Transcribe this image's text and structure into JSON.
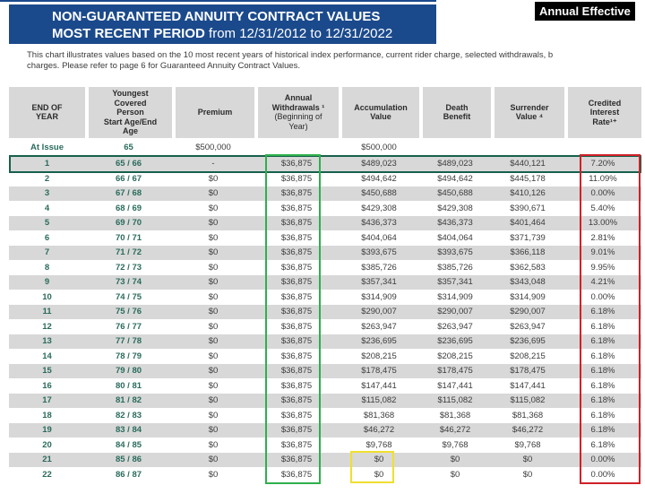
{
  "header": {
    "title_line1": "NON-GUARANTEED ANNUITY CONTRACT VALUES",
    "title_line2_bold": "MOST RECENT PERIOD",
    "title_line2_rest": " from 12/31/2012 to 12/31/2022",
    "corner_label": "Annual Effective"
  },
  "note": {
    "line1": "This chart illustrates values based on the 10 most recent years of historical index performance, current rider charge, selected withdrawals, b",
    "line2": "charges. Please refer to page 6 for Guaranteed Annuity Contract Values."
  },
  "table": {
    "columns": [
      {
        "title": "END OF\nYEAR"
      },
      {
        "title": "Youngest\nCovered\nPerson\nStart Age/End\nAge"
      },
      {
        "title": "Premium"
      },
      {
        "title": "Annual\nWithdrawals ¹",
        "sub": "(Beginning of\nYear)"
      },
      {
        "title": "Accumulation\nValue"
      },
      {
        "title": "Death\nBenefit"
      },
      {
        "title": "Surrender\nValue ⁴"
      },
      {
        "title": "Credited\nInterest\nRate¹⁺"
      }
    ],
    "at_issue": [
      "At Issue",
      "65",
      "$500,000",
      "",
      "$500,000",
      "",
      "",
      ""
    ],
    "rows": [
      [
        "1",
        "65 / 66",
        "-",
        "$36,875",
        "$489,023",
        "$489,023",
        "$440,121",
        "7.20%"
      ],
      [
        "2",
        "66 / 67",
        "$0",
        "$36,875",
        "$494,642",
        "$494,642",
        "$445,178",
        "11.09%"
      ],
      [
        "3",
        "67 / 68",
        "$0",
        "$36,875",
        "$450,688",
        "$450,688",
        "$410,126",
        "0.00%"
      ],
      [
        "4",
        "68 / 69",
        "$0",
        "$36,875",
        "$429,308",
        "$429,308",
        "$390,671",
        "5.40%"
      ],
      [
        "5",
        "69 / 70",
        "$0",
        "$36,875",
        "$436,373",
        "$436,373",
        "$401,464",
        "13.00%"
      ],
      [
        "6",
        "70 / 71",
        "$0",
        "$36,875",
        "$404,064",
        "$404,064",
        "$371,739",
        "2.81%"
      ],
      [
        "7",
        "71 / 72",
        "$0",
        "$36,875",
        "$393,675",
        "$393,675",
        "$366,118",
        "9.01%"
      ],
      [
        "8",
        "72 / 73",
        "$0",
        "$36,875",
        "$385,726",
        "$385,726",
        "$362,583",
        "9.95%"
      ],
      [
        "9",
        "73 / 74",
        "$0",
        "$36,875",
        "$357,341",
        "$357,341",
        "$343,048",
        "4.21%"
      ],
      [
        "10",
        "74 / 75",
        "$0",
        "$36,875",
        "$314,909",
        "$314,909",
        "$314,909",
        "0.00%"
      ],
      [
        "11",
        "75 / 76",
        "$0",
        "$36,875",
        "$290,007",
        "$290,007",
        "$290,007",
        "6.18%"
      ],
      [
        "12",
        "76 / 77",
        "$0",
        "$36,875",
        "$263,947",
        "$263,947",
        "$263,947",
        "6.18%"
      ],
      [
        "13",
        "77 / 78",
        "$0",
        "$36,875",
        "$236,695",
        "$236,695",
        "$236,695",
        "6.18%"
      ],
      [
        "14",
        "78 / 79",
        "$0",
        "$36,875",
        "$208,215",
        "$208,215",
        "$208,215",
        "6.18%"
      ],
      [
        "15",
        "79 / 80",
        "$0",
        "$36,875",
        "$178,475",
        "$178,475",
        "$178,475",
        "6.18%"
      ],
      [
        "16",
        "80 / 81",
        "$0",
        "$36,875",
        "$147,441",
        "$147,441",
        "$147,441",
        "6.18%"
      ],
      [
        "17",
        "81 / 82",
        "$0",
        "$36,875",
        "$115,082",
        "$115,082",
        "$115,082",
        "6.18%"
      ],
      [
        "18",
        "82 / 83",
        "$0",
        "$36,875",
        "$81,368",
        "$81,368",
        "$81,368",
        "6.18%"
      ],
      [
        "19",
        "83 / 84",
        "$0",
        "$36,875",
        "$46,272",
        "$46,272",
        "$46,272",
        "6.18%"
      ],
      [
        "20",
        "84 / 85",
        "$0",
        "$36,875",
        "$9,768",
        "$9,768",
        "$9,768",
        "6.18%"
      ],
      [
        "21",
        "85 / 86",
        "$0",
        "$36,875",
        "$0",
        "$0",
        "$0",
        "0.00%"
      ],
      [
        "22",
        "86 / 87",
        "$0",
        "$36,875",
        "$0",
        "$0",
        "$0",
        "0.00%"
      ]
    ]
  },
  "colors": {
    "banner_blue": "#1b4a8c",
    "corner_black": "#000000",
    "teal_text": "#2a6b5c",
    "stripe_gray": "#d8d8d8",
    "row_box_green": "#17604c",
    "col_box_green": "#2eb04c",
    "rate_box_red": "#cf2128",
    "zero_box_yellow": "#f0df2e"
  }
}
